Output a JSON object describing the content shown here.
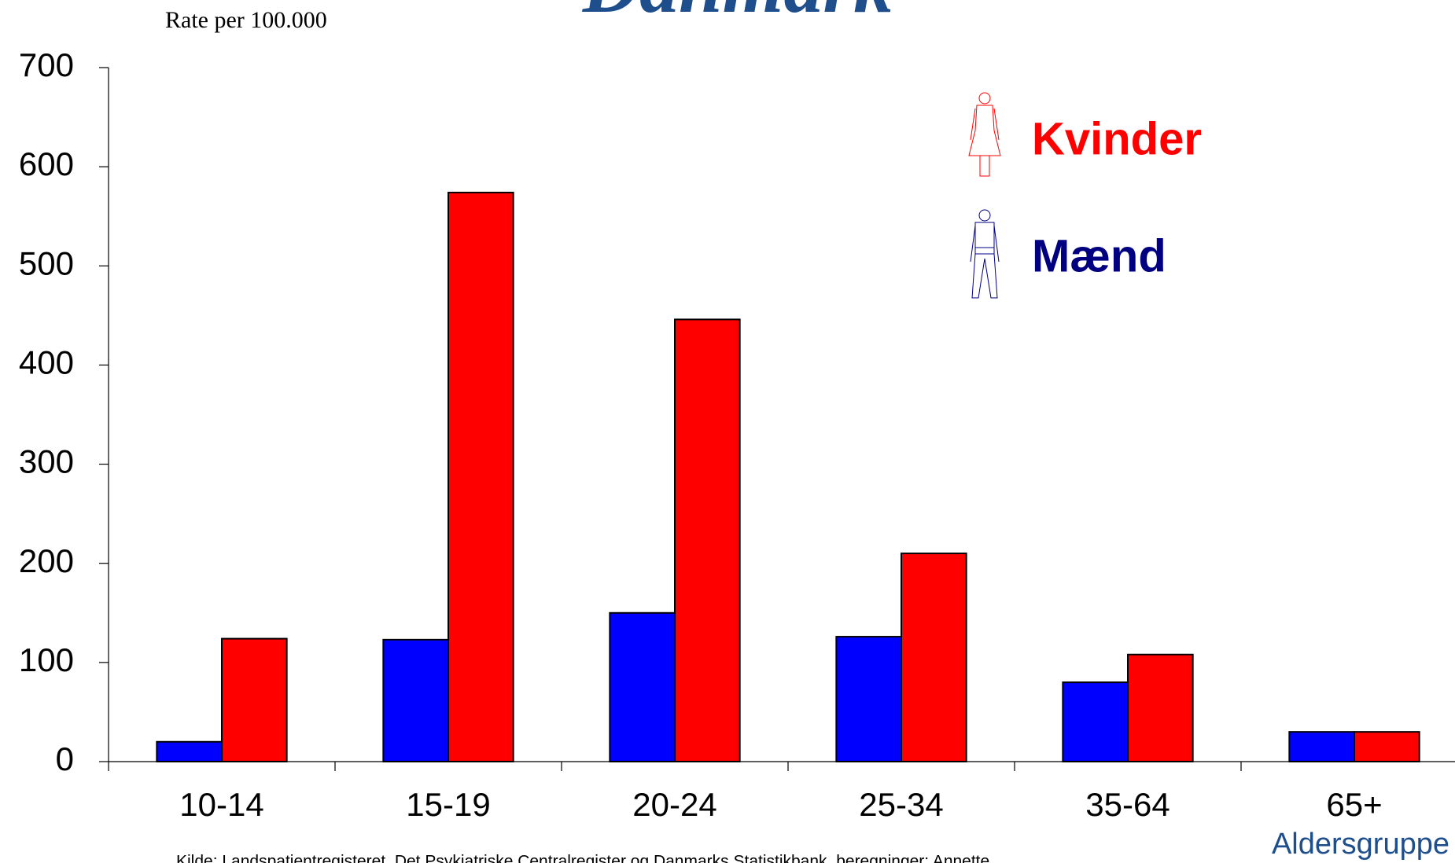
{
  "chart_data": {
    "type": "bar",
    "title": "Danmark",
    "y_label": "Rate per 100.000",
    "x_label": "Aldersgruppe",
    "source": "Kilde: Landspatientregisteret, Det Psykiatriske Centralregister og Danmarks Statistikbank, beregninger: Annette",
    "categories": [
      "10-14",
      "15-19",
      "20-24",
      "25-34",
      "35-64",
      "65+"
    ],
    "series": [
      {
        "name": "Mænd",
        "color": "#0000ff",
        "legend_color": "#000080",
        "values": [
          20,
          123,
          150,
          126,
          80,
          30
        ]
      },
      {
        "name": "Kvinder",
        "color": "#ff0000",
        "legend_color": "#ff0000",
        "values": [
          124,
          574,
          446,
          210,
          108,
          30
        ]
      }
    ],
    "ylim": [
      0,
      700
    ],
    "yticks": [
      0,
      100,
      200,
      300,
      400,
      500,
      600,
      700
    ],
    "grid": false
  }
}
